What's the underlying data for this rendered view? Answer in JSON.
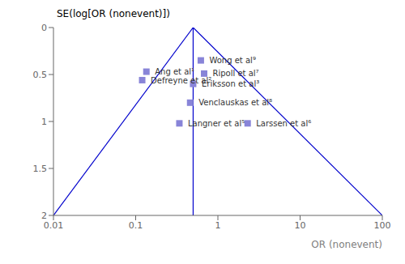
{
  "chart_data": {
    "type": "scatter",
    "title": "",
    "xlabel": "OR (nonevent)",
    "ylabel": "SE(log[OR (nonevent)])",
    "log": "x",
    "grid": false,
    "xlim": [
      0.01,
      100
    ],
    "xticks": [
      0.01,
      0.1,
      1,
      10,
      100
    ],
    "ylim": [
      2,
      0
    ],
    "yticks": [
      0,
      0.5,
      1,
      1.5,
      2
    ],
    "series": [
      {
        "type": "scatter",
        "marker": "square",
        "color": "#8884d8",
        "x": [
          0.62,
          0.135,
          0.68,
          0.12,
          0.5,
          0.46,
          0.34,
          2.3
        ],
        "values": [
          0.35,
          0.47,
          0.49,
          0.56,
          0.6,
          0.8,
          1.02,
          1.02
        ],
        "point_labels": [
          "Wong et al⁹",
          "Ang et al¹",
          "Ripoll et al⁷",
          "Defreyne et al²",
          "Eriksson et al³",
          "Venclauskas et al⁸",
          "Langner et al⁵",
          "Larssen et al⁶"
        ]
      },
      {
        "type": "line",
        "color": "#0000cc",
        "x": [
          0.5,
          0.01
        ],
        "values": [
          0.0,
          2.0
        ]
      },
      {
        "type": "line",
        "color": "#0000cc",
        "x": [
          0.5,
          100
        ],
        "values": [
          0.0,
          2.0
        ]
      }
    ],
    "vlines": [
      {
        "x": 0.5,
        "color": "#0000cc"
      }
    ]
  }
}
